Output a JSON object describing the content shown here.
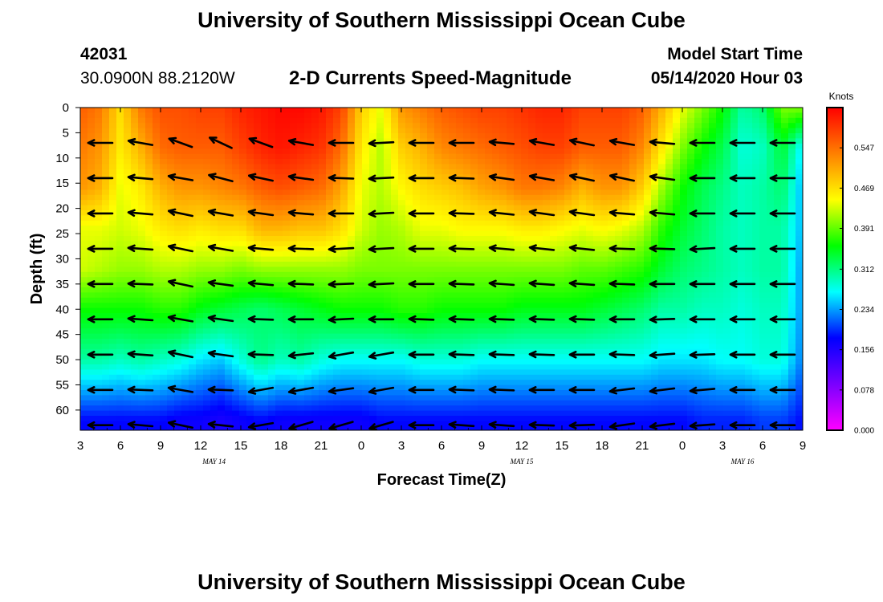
{
  "header": {
    "title_top": "University of Southern Mississippi Ocean Cube",
    "station_id": "42031",
    "station_coords": "30.0900N 88.2120W",
    "chart_title": "2-D Currents Speed-Magnitude",
    "model_label": "Model Start Time",
    "model_time": "05/14/2020 Hour 03",
    "title_bottom": "University of Southern Mississippi Ocean Cube"
  },
  "chart_data": {
    "type": "heatmap",
    "title": "2-D Currents Speed-Magnitude",
    "xlabel": "Forecast Time(Z)",
    "ylabel": "Depth (ft)",
    "x_tick_labels": [
      "3",
      "6",
      "9",
      "12",
      "15",
      "18",
      "21",
      "0",
      "3",
      "6",
      "9",
      "12",
      "15",
      "18",
      "21",
      "0",
      "3",
      "6",
      "9"
    ],
    "x_tick_hours": [
      3,
      6,
      9,
      12,
      15,
      18,
      21,
      24,
      27,
      30,
      33,
      36,
      39,
      42,
      45,
      48,
      51,
      54,
      57
    ],
    "xlim_hours": [
      3,
      57
    ],
    "date_labels": [
      {
        "text": "MAY 14",
        "hour": 13
      },
      {
        "text": "MAY 15",
        "hour": 36
      },
      {
        "text": "MAY 16",
        "hour": 52.5
      }
    ],
    "y_tick_labels": [
      "0",
      "5",
      "10",
      "15",
      "20",
      "25",
      "30",
      "35",
      "40",
      "45",
      "50",
      "55",
      "60"
    ],
    "y_ticks": [
      0,
      5,
      10,
      15,
      20,
      25,
      30,
      35,
      40,
      45,
      50,
      55,
      60
    ],
    "ylim": [
      0,
      64
    ],
    "y_inverted": true,
    "colorbar": {
      "unit": "Knots",
      "ticks": [
        0.0,
        0.078,
        0.156,
        0.234,
        0.312,
        0.391,
        0.469,
        0.547
      ],
      "tick_labels": [
        "0.000",
        "0.078",
        "0.156",
        "0.234",
        "0.312",
        "0.391",
        "0.469",
        "0.547"
      ],
      "range": [
        0,
        0.625
      ],
      "colors": [
        "#ff00ff",
        "#7a00ff",
        "#0000ff",
        "#00ffff",
        "#00ff00",
        "#ffff00",
        "#ff8000",
        "#ff0000"
      ]
    },
    "speed_grid": {
      "hours": [
        3,
        4.5,
        6,
        7.5,
        9,
        10.5,
        12,
        13.5,
        15,
        16.5,
        18,
        19.5,
        21,
        22.5,
        24,
        25.5,
        27,
        28.5,
        30,
        31.5,
        33,
        34.5,
        36,
        37.5,
        39,
        40.5,
        42,
        43.5,
        45,
        46.5,
        48,
        49.5,
        51,
        52.5,
        54,
        55.5,
        57
      ],
      "depths": [
        0,
        7,
        14,
        21,
        28,
        35,
        42,
        49,
        56,
        63
      ],
      "values": [
        [
          0.56,
          0.54,
          0.52,
          0.44,
          0.43,
          0.36,
          0.3,
          0.18
        ],
        [
          0.54,
          0.52,
          0.5,
          0.44,
          0.42,
          0.36,
          0.3,
          0.18
        ],
        [
          0.47,
          0.46,
          0.44,
          0.43,
          0.41,
          0.36,
          0.29,
          0.18
        ],
        [
          0.54,
          0.5,
          0.46,
          0.44,
          0.41,
          0.36,
          0.3,
          0.18
        ],
        [
          0.57,
          0.55,
          0.5,
          0.46,
          0.42,
          0.37,
          0.29,
          0.18
        ],
        [
          0.57,
          0.56,
          0.52,
          0.47,
          0.42,
          0.37,
          0.28,
          0.17
        ],
        [
          0.58,
          0.56,
          0.52,
          0.46,
          0.41,
          0.35,
          0.26,
          0.17
        ],
        [
          0.58,
          0.56,
          0.53,
          0.47,
          0.41,
          0.34,
          0.25,
          0.16
        ],
        [
          0.6,
          0.58,
          0.54,
          0.47,
          0.4,
          0.33,
          0.28,
          0.17
        ],
        [
          0.61,
          0.6,
          0.56,
          0.5,
          0.41,
          0.32,
          0.31,
          0.18
        ],
        [
          0.62,
          0.61,
          0.57,
          0.5,
          0.41,
          0.33,
          0.29,
          0.17
        ],
        [
          0.62,
          0.6,
          0.56,
          0.49,
          0.41,
          0.34,
          0.3,
          0.17
        ],
        [
          0.61,
          0.59,
          0.55,
          0.49,
          0.41,
          0.35,
          0.28,
          0.17
        ],
        [
          0.58,
          0.55,
          0.51,
          0.47,
          0.41,
          0.36,
          0.27,
          0.17
        ],
        [
          0.48,
          0.46,
          0.44,
          0.43,
          0.4,
          0.36,
          0.27,
          0.17
        ],
        [
          0.44,
          0.42,
          0.42,
          0.41,
          0.4,
          0.36,
          0.27,
          0.18
        ],
        [
          0.52,
          0.48,
          0.45,
          0.42,
          0.4,
          0.37,
          0.27,
          0.18
        ],
        [
          0.54,
          0.5,
          0.47,
          0.44,
          0.4,
          0.37,
          0.28,
          0.18
        ],
        [
          0.56,
          0.53,
          0.48,
          0.44,
          0.4,
          0.36,
          0.28,
          0.18
        ],
        [
          0.57,
          0.54,
          0.49,
          0.45,
          0.4,
          0.36,
          0.28,
          0.18
        ],
        [
          0.58,
          0.55,
          0.51,
          0.45,
          0.4,
          0.36,
          0.27,
          0.18
        ],
        [
          0.58,
          0.56,
          0.52,
          0.45,
          0.4,
          0.36,
          0.27,
          0.18
        ],
        [
          0.59,
          0.57,
          0.54,
          0.46,
          0.4,
          0.35,
          0.27,
          0.18
        ],
        [
          0.6,
          0.58,
          0.54,
          0.46,
          0.4,
          0.35,
          0.27,
          0.18
        ],
        [
          0.6,
          0.58,
          0.53,
          0.45,
          0.4,
          0.35,
          0.27,
          0.18
        ],
        [
          0.58,
          0.56,
          0.5,
          0.44,
          0.39,
          0.35,
          0.27,
          0.18
        ],
        [
          0.58,
          0.56,
          0.52,
          0.45,
          0.39,
          0.34,
          0.27,
          0.18
        ],
        [
          0.58,
          0.56,
          0.52,
          0.44,
          0.38,
          0.33,
          0.27,
          0.18
        ],
        [
          0.56,
          0.53,
          0.48,
          0.42,
          0.37,
          0.32,
          0.27,
          0.18
        ],
        [
          0.5,
          0.46,
          0.41,
          0.37,
          0.34,
          0.3,
          0.26,
          0.18
        ],
        [
          0.44,
          0.4,
          0.36,
          0.34,
          0.32,
          0.3,
          0.26,
          0.18
        ],
        [
          0.4,
          0.36,
          0.33,
          0.32,
          0.31,
          0.29,
          0.26,
          0.19
        ],
        [
          0.36,
          0.33,
          0.31,
          0.3,
          0.3,
          0.29,
          0.27,
          0.19
        ],
        [
          0.3,
          0.28,
          0.29,
          0.29,
          0.29,
          0.28,
          0.27,
          0.19
        ],
        [
          0.32,
          0.29,
          0.3,
          0.3,
          0.3,
          0.29,
          0.28,
          0.2
        ],
        [
          0.4,
          0.34,
          0.32,
          0.3,
          0.3,
          0.29,
          0.28,
          0.2
        ],
        [
          0.4,
          0.26,
          0.24,
          0.24,
          0.23,
          0.23,
          0.22,
          0.18
        ]
      ],
      "value_depths": [
        0,
        8,
        16,
        24,
        32,
        40,
        50,
        62
      ]
    },
    "arrow_columns": [
      4.5,
      7.5,
      10.5,
      13.5,
      16.5,
      19.5,
      22.5,
      25.5,
      28.5,
      31.5,
      34.5,
      37.5,
      40.5,
      43.5,
      46.5,
      49.5,
      52.5,
      55.5
    ],
    "arrow_rows": [
      7,
      14,
      21,
      28,
      35,
      42,
      49,
      56,
      63
    ],
    "arrow_angles_deg": [
      [
        180,
        170,
        160,
        155,
        160,
        170,
        180,
        183,
        180,
        180,
        175,
        170,
        168,
        170,
        175,
        180,
        180,
        180
      ],
      [
        180,
        175,
        170,
        165,
        168,
        172,
        178,
        183,
        180,
        178,
        172,
        170,
        168,
        168,
        172,
        180,
        180,
        180
      ],
      [
        180,
        175,
        168,
        170,
        172,
        175,
        180,
        183,
        180,
        178,
        174,
        172,
        172,
        175,
        175,
        180,
        180,
        180
      ],
      [
        180,
        176,
        168,
        170,
        175,
        178,
        183,
        183,
        180,
        178,
        175,
        174,
        174,
        178,
        178,
        183,
        180,
        180
      ],
      [
        180,
        178,
        168,
        172,
        175,
        178,
        182,
        183,
        180,
        178,
        176,
        176,
        176,
        178,
        180,
        180,
        180,
        180
      ],
      [
        180,
        176,
        170,
        172,
        178,
        180,
        183,
        180,
        178,
        178,
        178,
        178,
        178,
        180,
        182,
        180,
        180,
        180
      ],
      [
        180,
        176,
        168,
        172,
        178,
        186,
        190,
        190,
        180,
        178,
        178,
        178,
        180,
        178,
        184,
        182,
        180,
        180
      ],
      [
        180,
        178,
        170,
        178,
        190,
        190,
        188,
        190,
        180,
        178,
        178,
        180,
        180,
        187,
        187,
        185,
        180,
        180
      ],
      [
        180,
        175,
        168,
        174,
        190,
        196,
        196,
        196,
        180,
        176,
        176,
        178,
        182,
        188,
        187,
        184,
        180,
        180
      ]
    ]
  }
}
